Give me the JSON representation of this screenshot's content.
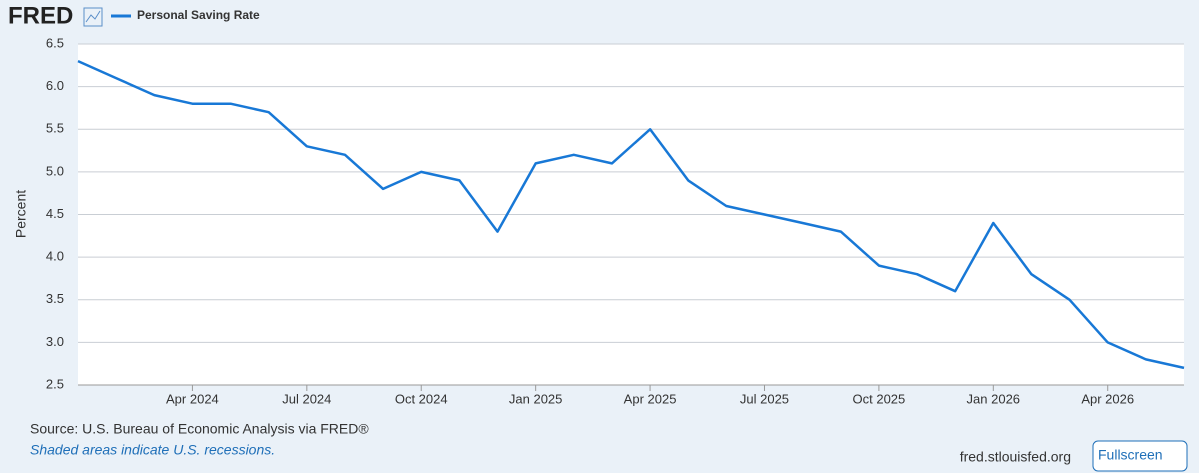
{
  "header": {
    "logo": "FRED"
  },
  "chart_data": {
    "type": "line",
    "y_label": "Percent",
    "x": [
      "2024-01",
      "2024-02",
      "2024-03",
      "2024-04",
      "2024-05",
      "2024-06",
      "2024-07",
      "2024-08",
      "2024-09",
      "2024-10",
      "2024-11",
      "2024-12",
      "2025-01",
      "2025-02",
      "2025-03",
      "2025-04",
      "2025-05",
      "2025-06",
      "2025-07",
      "2025-08",
      "2025-09",
      "2025-10",
      "2025-11",
      "2025-12",
      "2026-01",
      "2026-02",
      "2026-03",
      "2026-04",
      "2026-05",
      "2026-06"
    ],
    "series": [
      {
        "name": "Personal Saving Rate",
        "color": "#1878d6",
        "values": [
          6.3,
          6.1,
          5.9,
          5.8,
          5.8,
          5.7,
          5.3,
          5.2,
          4.8,
          5.0,
          4.9,
          4.3,
          5.1,
          5.2,
          5.1,
          5.5,
          4.9,
          4.6,
          4.5,
          4.4,
          4.3,
          3.9,
          3.8,
          3.6,
          4.4,
          3.8,
          3.5,
          3.0,
          2.8,
          2.7
        ]
      }
    ],
    "xlim": [
      "2024-01",
      "2026-06"
    ],
    "xticks": [
      {
        "value": "2024-04",
        "label": "Apr 2024"
      },
      {
        "value": "2024-07",
        "label": "Jul 2024"
      },
      {
        "value": "2024-10",
        "label": "Oct 2024"
      },
      {
        "value": "2025-01",
        "label": "Jan 2025"
      },
      {
        "value": "2025-04",
        "label": "Apr 2025"
      },
      {
        "value": "2025-07",
        "label": "Jul 2025"
      },
      {
        "value": "2025-10",
        "label": "Oct 2025"
      },
      {
        "value": "2026-01",
        "label": "Jan 2026"
      },
      {
        "value": "2026-04",
        "label": "Apr 2026"
      }
    ],
    "ylim": [
      2.5,
      6.5
    ],
    "yticks": [
      2.5,
      {
        "value": 3,
        "label": "3.0"
      },
      3.5,
      {
        "value": 4,
        "label": "4.0"
      },
      4.5,
      {
        "value": 5,
        "label": "5.0"
      },
      5.5,
      {
        "value": 6,
        "label": "6.0"
      },
      6.5
    ],
    "grid": true
  },
  "footer": {
    "source": "Source: U.S. Bureau of Economic Analysis via FRED®",
    "note": "Shaded areas indicate U.S. recessions.",
    "site": "fred.stlouisfed.org",
    "button": "Fullscreen"
  }
}
